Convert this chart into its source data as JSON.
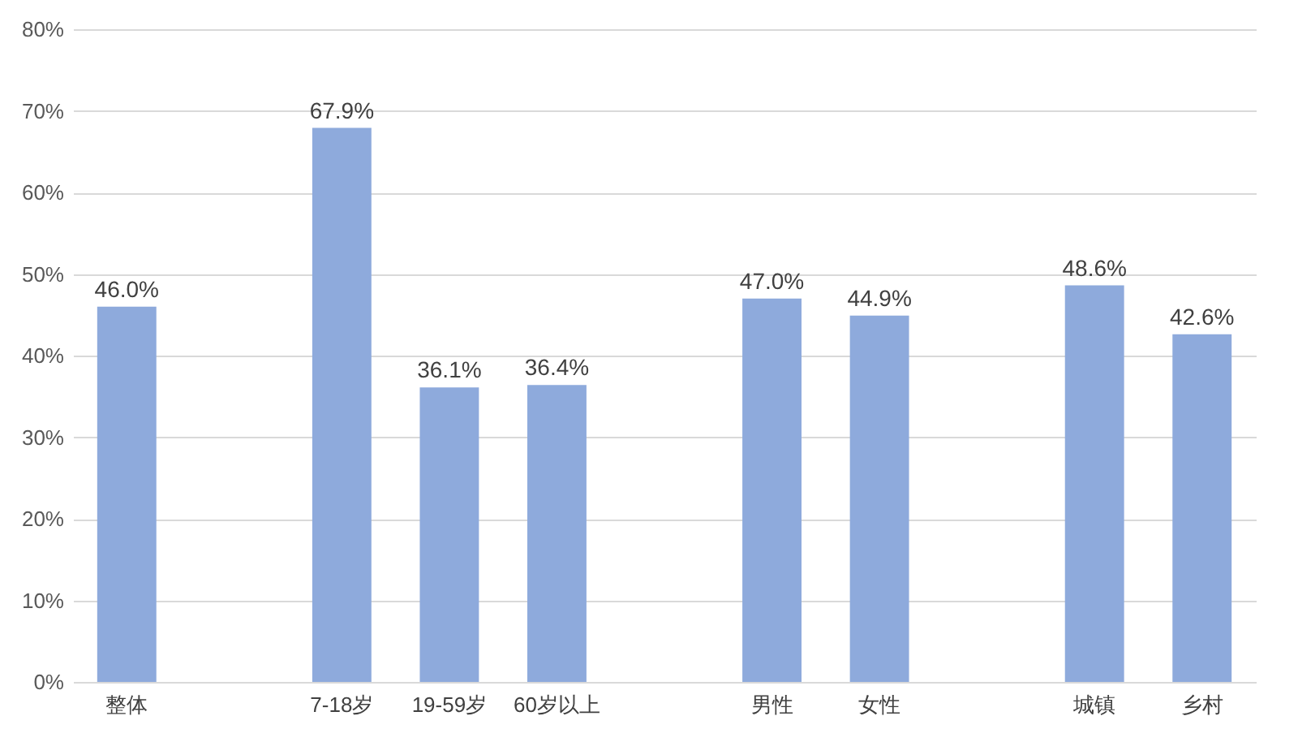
{
  "chart_data": {
    "type": "bar",
    "categories": [
      "整体",
      null,
      "7-18岁",
      "19-59岁",
      "60岁以上",
      null,
      "男性",
      "女性",
      null,
      "城镇",
      "乡村"
    ],
    "values": [
      46.0,
      null,
      67.9,
      36.1,
      36.4,
      null,
      47.0,
      44.9,
      null,
      48.6,
      42.6
    ],
    "value_labels": [
      "46.0%",
      null,
      "67.9%",
      "36.1%",
      "36.4%",
      null,
      "47.0%",
      "44.9%",
      null,
      "48.6%",
      "42.6%"
    ],
    "color": "#8eaadc",
    "ylim": [
      0,
      80
    ],
    "yticks": [
      {
        "value": 0,
        "label": "0%"
      },
      {
        "value": 10,
        "label": "10%"
      },
      {
        "value": 20,
        "label": "20%"
      },
      {
        "value": 30,
        "label": "30%"
      },
      {
        "value": 40,
        "label": "40%"
      },
      {
        "value": 50,
        "label": "50%"
      },
      {
        "value": 60,
        "label": "60%"
      },
      {
        "value": 70,
        "label": "70%"
      },
      {
        "value": 80,
        "label": "80%"
      }
    ],
    "grid": "y"
  }
}
